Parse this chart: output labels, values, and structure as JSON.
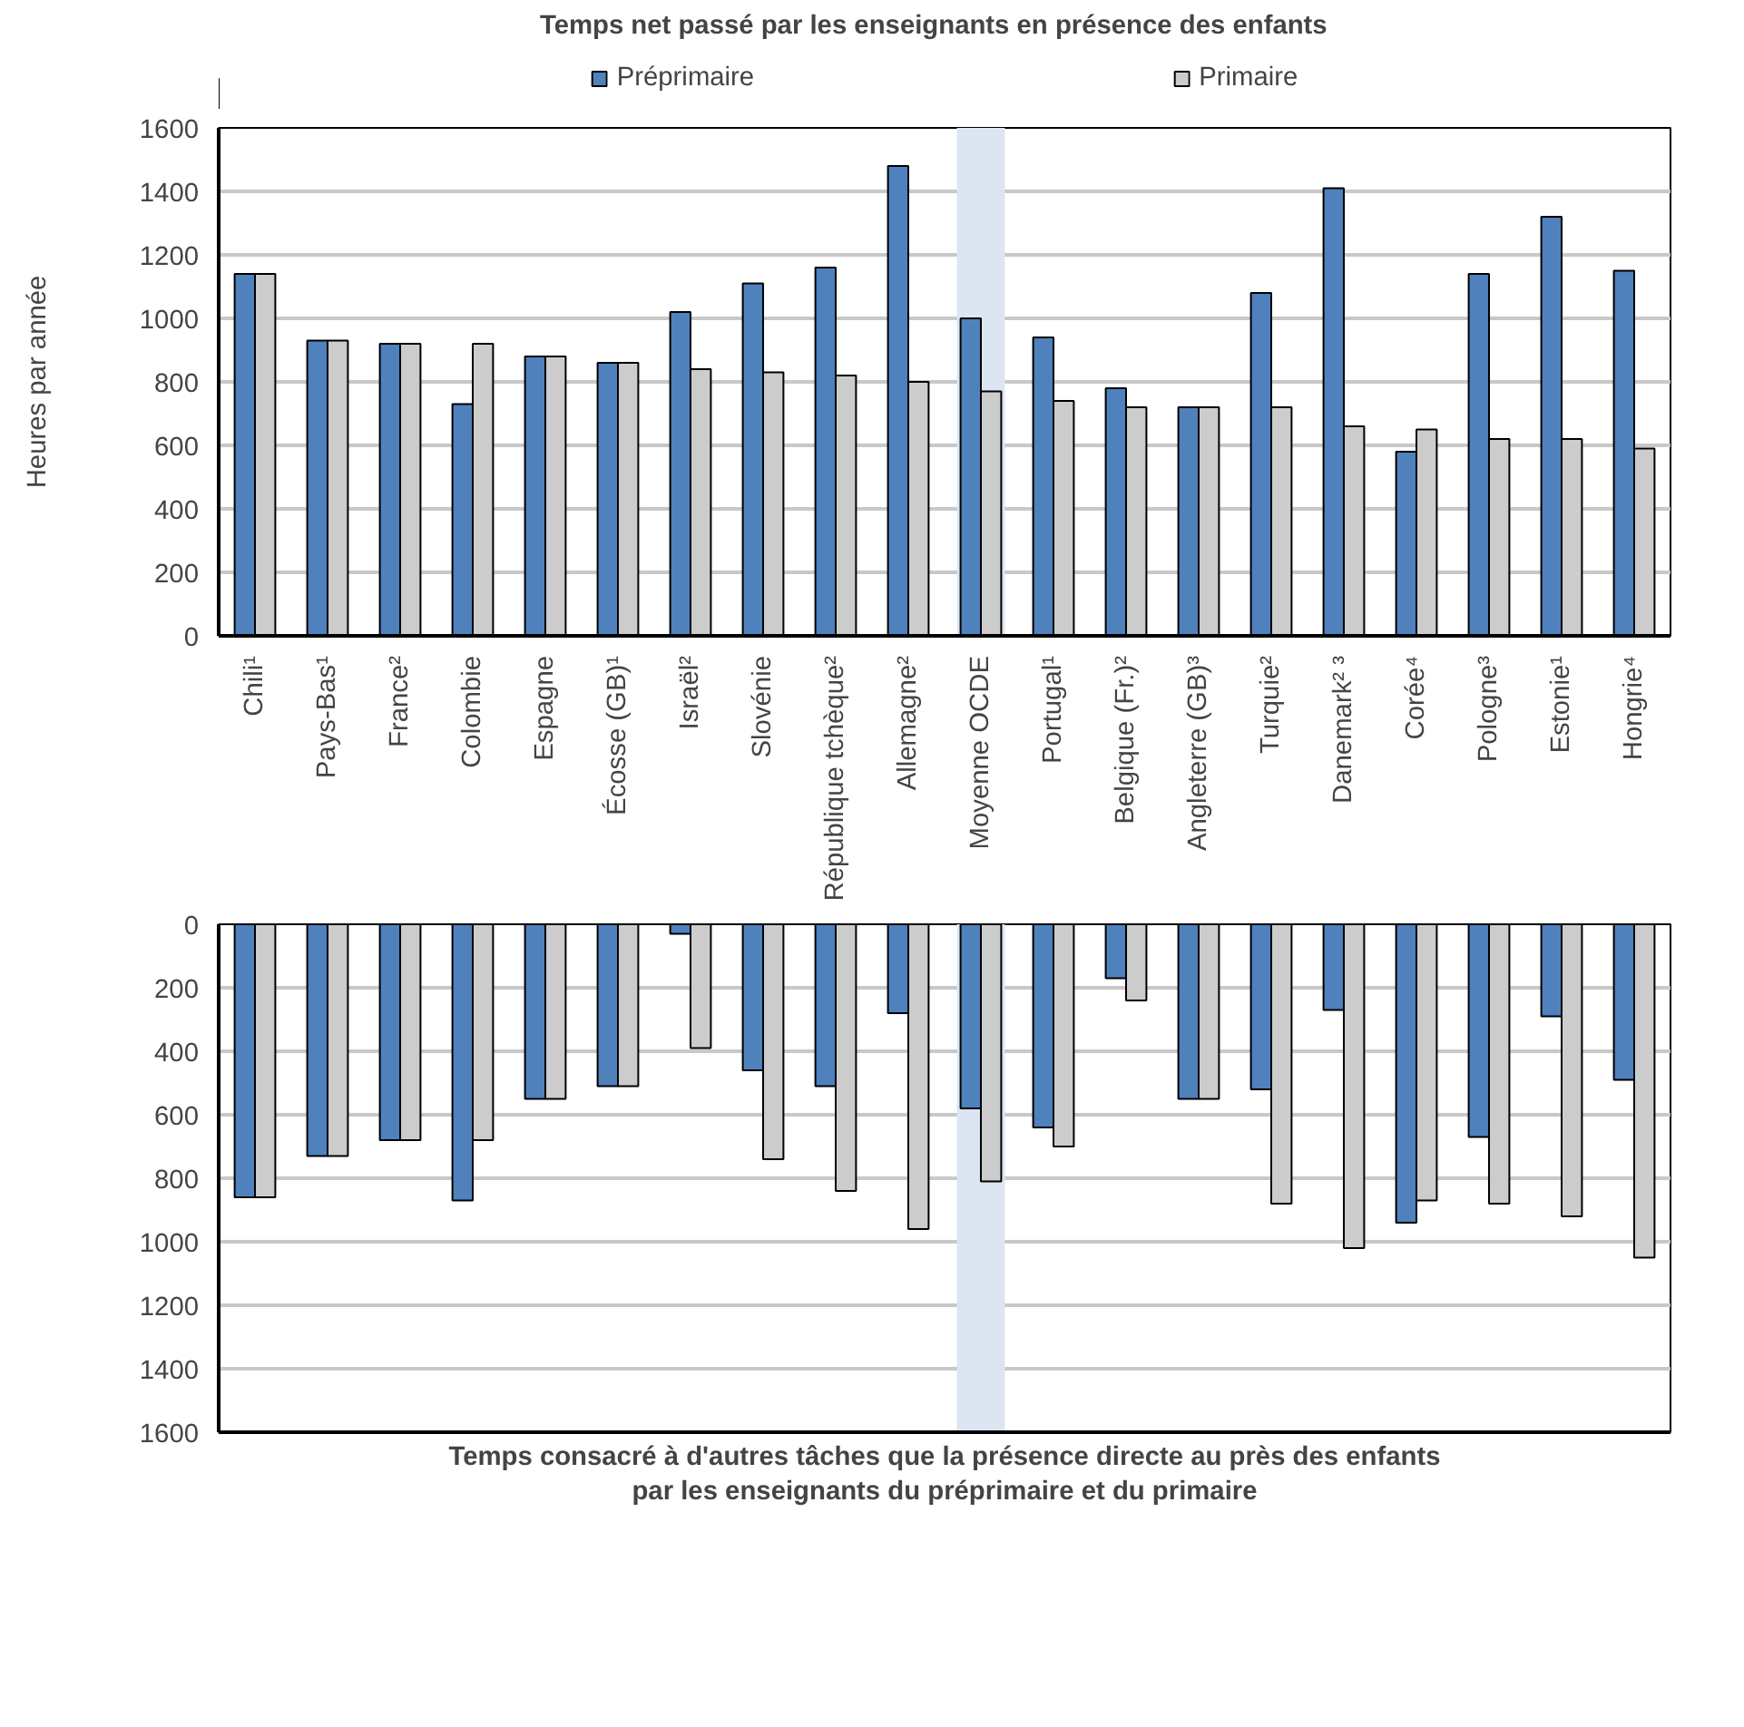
{
  "chart_data": [
    {
      "type": "bar",
      "title": "Temps  net  passé  par les enseignants en présence des enfants",
      "ylabel": "Heures par année",
      "categories": [
        "Chili¹",
        "Pays-Bas¹",
        "France²",
        "Colombie",
        "Espagne",
        "Écosse (GB)¹",
        "Israël²",
        "Slovénie",
        "République tchèque²",
        "Allemagne²",
        "Moyenne OCDE",
        "Portugal¹",
        "Belgique (Fr.)²",
        "Angleterre (GB)³",
        "Turquie²",
        "Danemark² ³",
        "Corée⁴",
        "Pologne³",
        "Estonie¹",
        "Hongrie⁴"
      ],
      "series": [
        {
          "name": "Préprimaire",
          "color": "#4f81bd",
          "values": [
            1140,
            930,
            920,
            730,
            880,
            860,
            1020,
            1110,
            1160,
            1480,
            1000,
            940,
            780,
            720,
            1080,
            1410,
            580,
            1140,
            1320,
            1150
          ]
        },
        {
          "name": "Primaire",
          "color": "#cccccc",
          "values": [
            1140,
            930,
            920,
            920,
            880,
            860,
            840,
            830,
            820,
            800,
            770,
            740,
            720,
            720,
            720,
            660,
            650,
            620,
            620,
            590
          ]
        }
      ],
      "ylim": [
        0,
        1600
      ],
      "yticks": [
        0,
        200,
        400,
        600,
        800,
        1000,
        1200,
        1400,
        1600
      ],
      "grid": "y",
      "legend": "top",
      "bands": [
        {
          "axis": "x",
          "from": "Moyenne OCDE",
          "to": "Moyenne OCDE",
          "color": "#dce6f2"
        }
      ]
    },
    {
      "type": "bar",
      "xlabel": "Temps consacré à d'autres tâches que la présence directe au près des enfants\npar les enseignants du préprimaire et du primaire",
      "categories": [
        "Chili¹",
        "Pays-Bas¹",
        "France²",
        "Colombie",
        "Espagne",
        "Écosse (GB)¹",
        "Israël²",
        "Slovénie",
        "République tchèque²",
        "Allemagne²",
        "Moyenne OCDE",
        "Portugal¹",
        "Belgique (Fr.)²",
        "Angleterre (GB)³",
        "Turquie²",
        "Danemark² ³",
        "Corée⁴",
        "Pologne³",
        "Estonie¹",
        "Hongrie⁴"
      ],
      "series": [
        {
          "color": "#4f81bd",
          "values": [
            860,
            730,
            680,
            870,
            550,
            510,
            30,
            460,
            510,
            280,
            580,
            640,
            170,
            550,
            520,
            270,
            940,
            670,
            290,
            490
          ]
        },
        {
          "color": "#cccccc",
          "values": [
            860,
            730,
            680,
            680,
            550,
            510,
            390,
            740,
            840,
            960,
            810,
            700,
            240,
            550,
            880,
            1020,
            870,
            880,
            920,
            1050
          ]
        }
      ],
      "ylim": [
        1600,
        0
      ],
      "yticks": [
        0,
        200,
        400,
        600,
        800,
        1000,
        1200,
        1400,
        1600
      ],
      "grid": "y",
      "tick_labels": "y",
      "bands": [
        {
          "axis": "x",
          "from": "Moyenne OCDE",
          "to": "Moyenne OCDE",
          "color": "#dce6f2"
        }
      ]
    }
  ]
}
